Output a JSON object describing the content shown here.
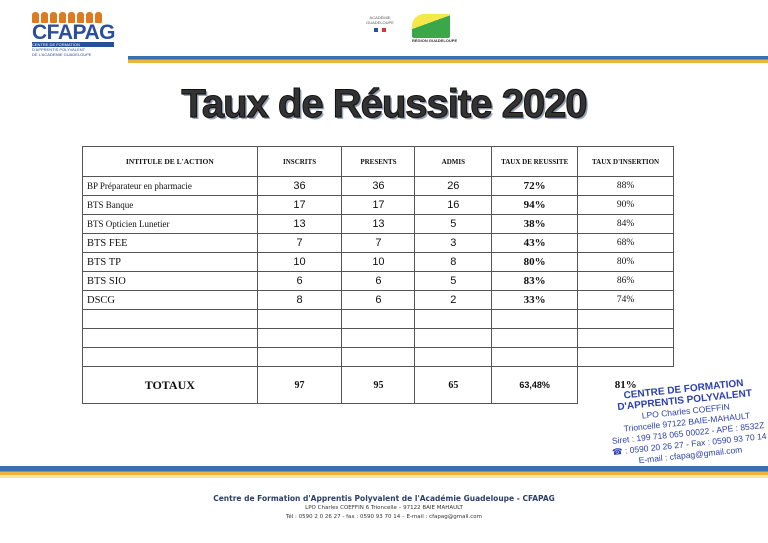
{
  "header": {
    "logo_text": "CFAPAG",
    "logo_sub1": "CENTRE DE FORMATION",
    "logo_sub2": "D'APPRENTIS POLYVALENT",
    "logo_sub3": "DE L'ACADEMIE GUADELOUPE",
    "academie_logo_text": "ACADÉMIE GUADELOUPE",
    "region_logo_text": "RÉGION GUADELOUPE",
    "colors": {
      "blue": "#3a6fb5",
      "orange": "#f2b33a",
      "logo_blue": "#2a4f9a",
      "logo_orange": "#e07a1f"
    }
  },
  "title": "Taux de Réussite 2020",
  "table": {
    "headers": [
      "INTITULE DE L'ACTION",
      "INSCRITS",
      "PRESENTS",
      "ADMIS",
      "TAUX DE REUSSITE",
      "TAUX D'INSERTION"
    ],
    "rows": [
      {
        "action": "BP Préparateur en pharmacie",
        "inscrits": "36",
        "presents": "36",
        "admis": "26",
        "reussite": "72%",
        "insertion": "88%"
      },
      {
        "action": "BTS Banque",
        "inscrits": "17",
        "presents": "17",
        "admis": "16",
        "reussite": "94%",
        "insertion": "90%"
      },
      {
        "action": "BTS  Opticien Lunetier",
        "inscrits": "13",
        "presents": "13",
        "admis": "5",
        "reussite": "38%",
        "insertion": "84%"
      },
      {
        "action": "BTS FEE",
        "inscrits": "7",
        "presents": "7",
        "admis": "3",
        "reussite": "43%",
        "insertion": "68%"
      },
      {
        "action": "BTS TP",
        "inscrits": "10",
        "presents": "10",
        "admis": "8",
        "reussite": "80%",
        "insertion": "80%"
      },
      {
        "action": "BTS SIO",
        "inscrits": "6",
        "presents": "6",
        "admis": "5",
        "reussite": "83%",
        "insertion": "86%"
      },
      {
        "action": "DSCG",
        "inscrits": "8",
        "presents": "6",
        "admis": "2",
        "reussite": "33%",
        "insertion": "74%"
      }
    ],
    "totals": {
      "label": "TOTAUX",
      "inscrits": "97",
      "presents": "95",
      "admis": "65",
      "reussite": "63,48%",
      "insertion": "81%"
    }
  },
  "stamp": {
    "line1": "CENTRE DE FORMATION",
    "line2": "D'APPRENTIS POLYVALENT",
    "line3": "LPO Charles COEFFIN",
    "line4": "Trioncelle 97122 BAIE-MAHAULT",
    "line5": "Siret : 199 718 065 00022 - APE : 8532Z",
    "line6": "☎ : 0590 20 26 27 - Fax : 0590 93 70 14",
    "line7": "E-mail : cfapag@gmail.com"
  },
  "footer": {
    "line1": "Centre de Formation d'Apprentis Polyvalent de l'Académie Guadeloupe - CFAPAG",
    "line2": "LPO Charles COEFFIN 6 Trioncelle – 97122 BAIE MAHAULT",
    "line3": "Tél : 0590 2 0 26 27 -  fax : 0590 93 70 14 – E-mail : cfapag@gmail.com"
  }
}
